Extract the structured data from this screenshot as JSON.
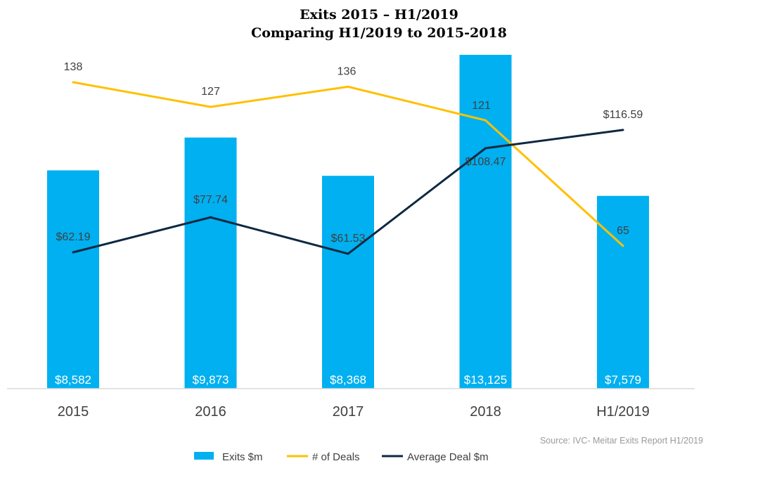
{
  "chart_data": {
    "type": "bar",
    "title": "Exits 2015 – H1/2019",
    "subtitle": "Comparing H1/2019 to 2015-2018",
    "categories": [
      "2015",
      "2016",
      "2017",
      "2018",
      "H1/2019"
    ],
    "series": [
      {
        "name": "Exits $m",
        "type": "bar",
        "color": "#00B0F0",
        "values": [
          8582,
          9873,
          8368,
          13125,
          7579
        ],
        "labels": [
          "$8,582",
          "$9,873",
          "$8,368",
          "$13,125",
          "$7,579"
        ]
      },
      {
        "name": "# of Deals",
        "type": "line",
        "color": "#FFC000",
        "values": [
          138,
          127,
          136,
          121,
          65
        ],
        "labels": [
          "138",
          "127",
          "136",
          "121",
          "65"
        ]
      },
      {
        "name": "Average Deal $m",
        "type": "line",
        "color": "#0E2841",
        "values": [
          62.19,
          77.74,
          61.53,
          108.47,
          116.59
        ],
        "labels": [
          "$62.19",
          "$77.74",
          "$61.53",
          "$108.47",
          "$116.59"
        ]
      }
    ],
    "legend_position": "bottom",
    "grid": false
  },
  "source": "Source: IVC- Meitar Exits Report H1/2019"
}
